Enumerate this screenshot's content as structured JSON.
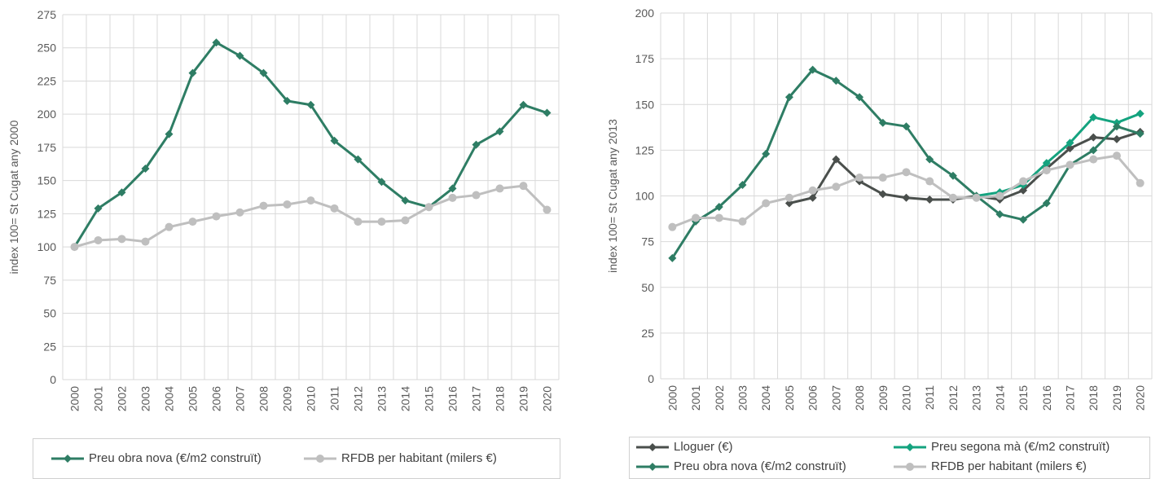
{
  "chart_data": [
    {
      "type": "line",
      "ylabel": "index 100= St Cugat any 2000",
      "ylim": [
        0,
        275
      ],
      "yticks": [
        0,
        25,
        50,
        75,
        100,
        125,
        150,
        175,
        200,
        225,
        250,
        275
      ],
      "x": [
        "2000",
        "2001",
        "2002",
        "2003",
        "2004",
        "2005",
        "2006",
        "2007",
        "2008",
        "2009",
        "2010",
        "2011",
        "2012",
        "2013",
        "2014",
        "2015",
        "2016",
        "2017",
        "2018",
        "2019",
        "2020"
      ],
      "grid": true,
      "legend_position": "bottom",
      "series": [
        {
          "name": "Preu obra nova (€/m2 construït)",
          "color": "#2e7d64",
          "marker": "diamond",
          "values": [
            100,
            129,
            141,
            159,
            185,
            231,
            254,
            244,
            231,
            210,
            207,
            180,
            166,
            149,
            135,
            130,
            144,
            177,
            187,
            207,
            201
          ]
        },
        {
          "name": "RFDB per habitant (milers €)",
          "color": "#bfbfbf",
          "marker": "circle",
          "values": [
            100,
            105,
            106,
            104,
            115,
            119,
            123,
            126,
            131,
            132,
            135,
            129,
            119,
            119,
            120,
            130,
            137,
            139,
            144,
            146,
            128
          ]
        }
      ]
    },
    {
      "type": "line",
      "ylabel": "index 100= St Cugat any 2013",
      "ylim": [
        0,
        200
      ],
      "yticks": [
        0,
        25,
        50,
        75,
        100,
        125,
        150,
        175,
        200
      ],
      "x": [
        "2000",
        "2001",
        "2002",
        "2003",
        "2004",
        "2005",
        "2006",
        "2007",
        "2008",
        "2009",
        "2010",
        "2011",
        "2012",
        "2013",
        "2014",
        "2015",
        "2016",
        "2017",
        "2018",
        "2019",
        "2020"
      ],
      "grid": true,
      "legend_position": "bottom",
      "series": [
        {
          "name": "Lloguer (€)",
          "color": "#4a4f4c",
          "marker": "diamond",
          "values": [
            null,
            null,
            null,
            null,
            null,
            96,
            99,
            120,
            108,
            101,
            99,
            98,
            98,
            100,
            98,
            103,
            115,
            126,
            132,
            131,
            135
          ]
        },
        {
          "name": "Preu segona mà (€/m2 construït)",
          "color": "#14a37f",
          "marker": "diamond",
          "values": [
            null,
            null,
            null,
            null,
            null,
            null,
            null,
            null,
            null,
            null,
            null,
            null,
            null,
            100,
            102,
            106,
            118,
            129,
            143,
            140,
            145
          ]
        },
        {
          "name": "Preu obra nova (€/m2 construït)",
          "color": "#2e7d64",
          "marker": "diamond",
          "values": [
            66,
            86,
            94,
            106,
            123,
            154,
            169,
            163,
            154,
            140,
            138,
            120,
            111,
            100,
            90,
            87,
            96,
            117,
            125,
            138,
            134
          ]
        },
        {
          "name": "RFDB per habitant (milers €)",
          "color": "#bfbfbf",
          "marker": "circle",
          "values": [
            83,
            88,
            88,
            86,
            96,
            99,
            103,
            105,
            110,
            110,
            113,
            108,
            99,
            99,
            100,
            108,
            114,
            117,
            120,
            122,
            107
          ]
        }
      ]
    }
  ]
}
